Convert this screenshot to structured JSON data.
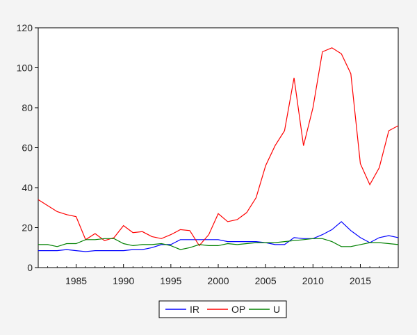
{
  "chart_data": {
    "type": "line",
    "x": [
      1981,
      1982,
      1983,
      1984,
      1985,
      1986,
      1987,
      1988,
      1989,
      1990,
      1991,
      1992,
      1993,
      1994,
      1995,
      1996,
      1997,
      1998,
      1999,
      2000,
      2001,
      2002,
      2003,
      2004,
      2005,
      2006,
      2007,
      2008,
      2009,
      2010,
      2011,
      2012,
      2013,
      2014,
      2015,
      2016,
      2017,
      2018,
      2019
    ],
    "xlim": [
      1981,
      2019
    ],
    "ylim": [
      0,
      120
    ],
    "x_ticks": [
      1985,
      1990,
      1995,
      2000,
      2005,
      2010,
      2015
    ],
    "y_ticks": [
      0,
      20,
      40,
      60,
      80,
      100,
      120
    ],
    "x_tick_labels": [
      "1985",
      "1990",
      "1995",
      "2000",
      "2005",
      "2010",
      "2015"
    ],
    "y_tick_labels": [
      "0",
      "20",
      "40",
      "60",
      "80",
      "100",
      "120"
    ],
    "grid": false,
    "legend_position": "bottom-center",
    "series": [
      {
        "name": "IR",
        "color": "#0000ff",
        "values": [
          8.5,
          8.5,
          8.5,
          9.0,
          8.5,
          8.0,
          8.5,
          8.5,
          8.5,
          8.5,
          9.0,
          9.0,
          10.0,
          11.5,
          11.5,
          14.0,
          14.0,
          14.0,
          14.0,
          14.0,
          13.0,
          13.0,
          13.0,
          13.0,
          12.5,
          11.5,
          11.5,
          15.0,
          14.5,
          14.5,
          16.5,
          19.0,
          23.0,
          18.5,
          15.0,
          12.5,
          15.0,
          16.0,
          15.0
        ]
      },
      {
        "name": "OP",
        "color": "#ff0000",
        "values": [
          34,
          31,
          28,
          26.5,
          25.5,
          14,
          17,
          13.5,
          15,
          21,
          17.5,
          18,
          15.5,
          14.5,
          16.5,
          19,
          18.5,
          11,
          16.5,
          27,
          23,
          24,
          27.5,
          35,
          51,
          61,
          68.5,
          95,
          61,
          80,
          108,
          110,
          107,
          97,
          52,
          41.5,
          50,
          68.5,
          71
        ]
      },
      {
        "name": "U",
        "color": "#008000",
        "values": [
          11.5,
          11.5,
          10.5,
          12.0,
          12.0,
          14.0,
          14.0,
          14.5,
          14.5,
          12.0,
          11.0,
          11.5,
          11.5,
          12.0,
          11.0,
          9.0,
          10.0,
          11.5,
          11.0,
          11.0,
          12.0,
          11.5,
          12.0,
          12.5,
          12.5,
          12.5,
          13.0,
          13.5,
          14.0,
          14.5,
          14.5,
          13.0,
          10.5,
          10.5,
          11.5,
          12.5,
          12.5,
          12.0,
          11.5
        ]
      }
    ]
  }
}
